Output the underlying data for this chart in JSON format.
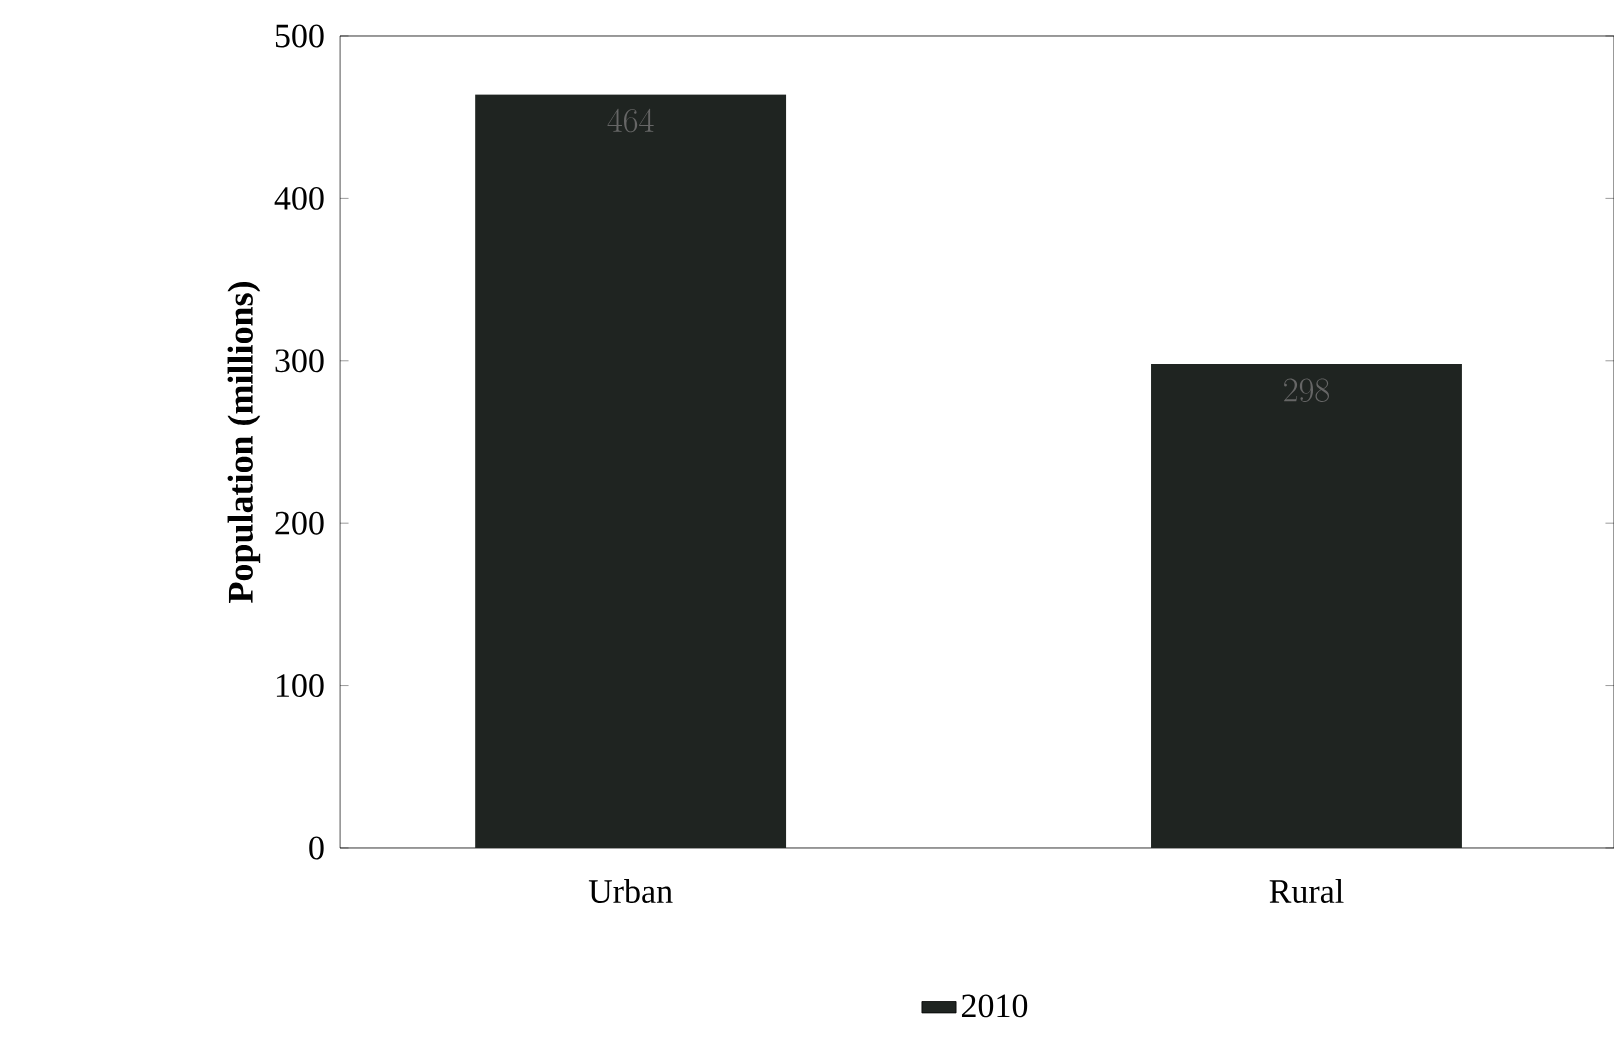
{
  "chart_data": {
    "type": "bar",
    "ylabel": "Population (millions)",
    "categories": [
      "Urban",
      "Rural"
    ],
    "series": [
      {
        "name": "2010",
        "color": "#1f2421",
        "values": [
          464,
          298
        ]
      }
    ],
    "ylim": [
      0,
      500
    ],
    "yticks": [
      0,
      100,
      200,
      300,
      400,
      500
    ],
    "grid": false,
    "legend": "bottom",
    "data_labels": true
  }
}
